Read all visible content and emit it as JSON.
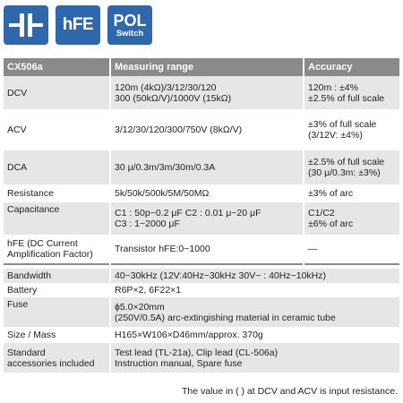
{
  "badges": [
    {
      "name": "capacitance",
      "icon": "capacitor-icon"
    },
    {
      "name": "hfe",
      "label": "hFE"
    },
    {
      "name": "pol",
      "label_top": "POL",
      "label_bottom": "Switch"
    }
  ],
  "table": {
    "headers": [
      "CX506a",
      "Measuring range",
      "Accuracy"
    ],
    "rows": [
      {
        "item": [
          "DCV"
        ],
        "range": [
          "120m (4kΩ)/3/12/30/120",
          "300 (50kΩ/V)/1000V (15kΩ)"
        ],
        "accuracy": [
          "120m : ±4%",
          "±2.5% of full scale"
        ]
      },
      {
        "item": [
          "ACV"
        ],
        "range": [
          "3/12/30/120/300/750V (8kΩ/V)"
        ],
        "accuracy": [
          "±3% of full scale",
          "(3/12V: ±4%)"
        ]
      },
      {
        "item": [
          "DCA"
        ],
        "range": [
          "30 μ/0.3m/3m/30m/0.3A"
        ],
        "accuracy": [
          "±2.5% of full scale",
          "(30 μ/0.3m: ±3%)"
        ]
      },
      {
        "item": [
          "Resistance"
        ],
        "range": [
          "5k/50k/500k/5M/50MΩ"
        ],
        "accuracy": [
          "±3% of arc"
        ]
      },
      {
        "item": [
          "Capacitance"
        ],
        "range": [
          "C1 : 50p~0.2 μF   C2 : 0.01 μ~20 μF",
          "C3 : 1~2000 μF"
        ],
        "accuracy": [
          "C1/C2",
          "±6% of arc"
        ]
      },
      {
        "item": [
          "hFE (DC Current",
          "Amplification Factor)"
        ],
        "range": [
          "Transistor hFE:0~1000"
        ],
        "accuracy": [
          "—"
        ]
      }
    ],
    "general_rows": [
      {
        "item": [
          "Bandwidth"
        ],
        "value": [
          "40~30kHz (12V:40Hz~30kHz 30V~ : 40Hz~10kHz)"
        ]
      },
      {
        "item": [
          "Battery"
        ],
        "value": [
          "R6P×2, 6F22×1"
        ]
      },
      {
        "item": [
          "Fuse"
        ],
        "value": [
          "ϕ5.0×20mm",
          "(250V/0.5A) arc-extingishing material in ceramic tube"
        ]
      },
      {
        "item": [
          "Size / Mass"
        ],
        "value": [
          "H165×W106×D46mm/approx. 370g"
        ]
      },
      {
        "item": [
          "Standard",
          "accessories included"
        ],
        "value": [
          "Test lead (TL-21a), Clip lead (CL-506a)",
          "Instruction manual, Spare fuse"
        ]
      }
    ]
  },
  "footnote": "The value in (   ) at DCV and ACV is input resistance.",
  "colors": {
    "badge_blue": "#2f67ad",
    "header_gray": "#8a8a8a",
    "row_shade": "#e6e6e6"
  }
}
